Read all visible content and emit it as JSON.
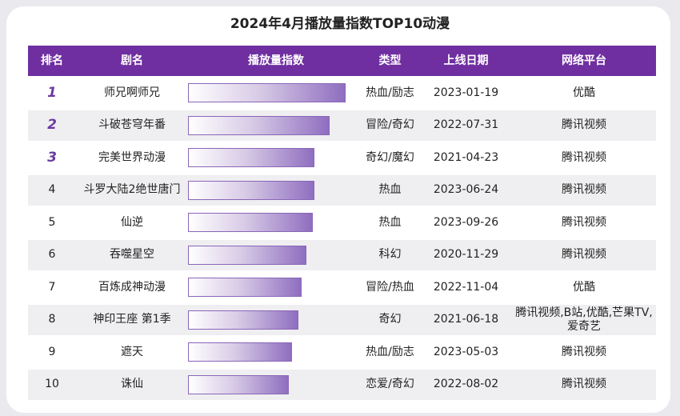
{
  "title": "2024年4月播放量指数TOP10动漫",
  "headers": {
    "rank": "排名",
    "name": "剧名",
    "index": "播放量指数",
    "type": "类型",
    "date": "上线日期",
    "platform": "网络平台"
  },
  "colors": {
    "header_bg": "#6f2fa0",
    "header_text": "#ffffff",
    "bar_end": "#8f6ec0",
    "row_alt": "#efeff1",
    "top_rank": "#6a3aa0"
  },
  "chart_data": {
    "type": "table",
    "index_max": 100,
    "rows": [
      {
        "rank": "1",
        "name": "师兄啊师兄",
        "index": 100,
        "type": "热血/励志",
        "date": "2023-01-19",
        "platform": "优酷"
      },
      {
        "rank": "2",
        "name": "斗破苍穹年番",
        "index": 90,
        "type": "冒险/奇幻",
        "date": "2022-07-31",
        "platform": "腾讯视频"
      },
      {
        "rank": "3",
        "name": "完美世界动漫",
        "index": 80,
        "type": "奇幻/魔幻",
        "date": "2021-04-23",
        "platform": "腾讯视频"
      },
      {
        "rank": "4",
        "name": "斗罗大陆2绝世唐门",
        "index": 80,
        "type": "热血",
        "date": "2023-06-24",
        "platform": "腾讯视频"
      },
      {
        "rank": "5",
        "name": "仙逆",
        "index": 79,
        "type": "热血",
        "date": "2023-09-26",
        "platform": "腾讯视频"
      },
      {
        "rank": "6",
        "name": "吞噬星空",
        "index": 75,
        "type": "科幻",
        "date": "2020-11-29",
        "platform": "腾讯视频"
      },
      {
        "rank": "7",
        "name": "百炼成神动漫",
        "index": 72,
        "type": "冒险/热血",
        "date": "2022-11-04",
        "platform": "优酷"
      },
      {
        "rank": "8",
        "name": "神印王座 第1季",
        "index": 70,
        "type": "奇幻",
        "date": "2021-06-18",
        "platform": "腾讯视频,B站,优酷,芒果TV,爱奇艺"
      },
      {
        "rank": "9",
        "name": "遮天",
        "index": 66,
        "type": "热血/励志",
        "date": "2023-05-03",
        "platform": "腾讯视频"
      },
      {
        "rank": "10",
        "name": "诛仙",
        "index": 64,
        "type": "恋爱/奇幻",
        "date": "2022-08-02",
        "platform": "腾讯视频"
      }
    ]
  }
}
